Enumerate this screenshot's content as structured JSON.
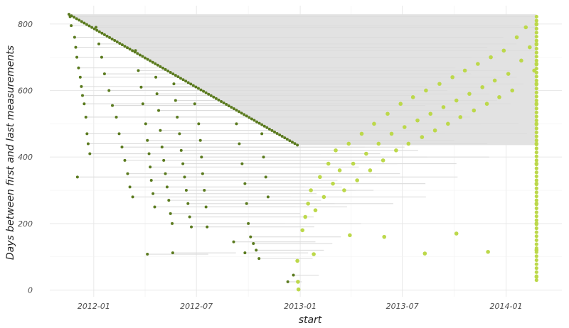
{
  "chart_data": {
    "type": "scatter",
    "title": "",
    "xlabel": "start",
    "ylabel": "Days between first and last measurements",
    "x_ticks": [
      {
        "label": "2012-01",
        "value": "2012-01-01"
      },
      {
        "label": "2012-07",
        "value": "2012-07-01"
      },
      {
        "label": "2013-01",
        "value": "2013-01-01"
      },
      {
        "label": "2013-07",
        "value": "2013-07-01"
      },
      {
        "label": "2014-01",
        "value": "2014-01-01"
      }
    ],
    "y_ticks": [
      0,
      200,
      400,
      600,
      800
    ],
    "xlim": [
      "2011-10-15",
      "2014-04-10"
    ],
    "ylim": [
      -20,
      855
    ],
    "grid": true,
    "legend": "none",
    "boundary": {
      "first_date": "2011-11-18",
      "last_date": "2014-02-24",
      "max_days": 829,
      "date_at_max_days_line_break": "2012-12-27",
      "min_band_days": 436
    },
    "colors": {
      "start_points": "#5a7a1e",
      "end_points": "#bcd84a",
      "segments": "#dcdcdc",
      "band": "#e2e2e2"
    },
    "series": [
      {
        "role": "start",
        "points": [
          {
            "x": "2011-11-20",
            "y": 822
          },
          {
            "x": "2011-11-22",
            "y": 795
          },
          {
            "x": "2011-11-28",
            "y": 760
          },
          {
            "x": "2011-11-30",
            "y": 730
          },
          {
            "x": "2011-12-02",
            "y": 700
          },
          {
            "x": "2011-12-05",
            "y": 668
          },
          {
            "x": "2011-12-08",
            "y": 640
          },
          {
            "x": "2011-12-10",
            "y": 612
          },
          {
            "x": "2011-12-12",
            "y": 585
          },
          {
            "x": "2011-12-15",
            "y": 560
          },
          {
            "x": "2011-12-18",
            "y": 520
          },
          {
            "x": "2011-12-20",
            "y": 470
          },
          {
            "x": "2011-12-22",
            "y": 440
          },
          {
            "x": "2011-12-25",
            "y": 410
          },
          {
            "x": "2011-12-03",
            "y": 340
          },
          {
            "x": "2012-01-05",
            "y": 790
          },
          {
            "x": "2012-01-10",
            "y": 740
          },
          {
            "x": "2012-01-15",
            "y": 700
          },
          {
            "x": "2012-01-20",
            "y": 650
          },
          {
            "x": "2012-01-28",
            "y": 600
          },
          {
            "x": "2012-02-03",
            "y": 555
          },
          {
            "x": "2012-02-10",
            "y": 520
          },
          {
            "x": "2012-02-15",
            "y": 470
          },
          {
            "x": "2012-02-20",
            "y": 430
          },
          {
            "x": "2012-02-25",
            "y": 390
          },
          {
            "x": "2012-03-01",
            "y": 350
          },
          {
            "x": "2012-03-05",
            "y": 310
          },
          {
            "x": "2012-03-10",
            "y": 280
          },
          {
            "x": "2012-03-15",
            "y": 720
          },
          {
            "x": "2012-03-20",
            "y": 660
          },
          {
            "x": "2012-03-25",
            "y": 610
          },
          {
            "x": "2012-03-28",
            "y": 560
          },
          {
            "x": "2012-04-02",
            "y": 500
          },
          {
            "x": "2012-04-05",
            "y": 450
          },
          {
            "x": "2012-04-08",
            "y": 410
          },
          {
            "x": "2012-04-10",
            "y": 370
          },
          {
            "x": "2012-04-12",
            "y": 330
          },
          {
            "x": "2012-04-15",
            "y": 290
          },
          {
            "x": "2012-04-18",
            "y": 250
          },
          {
            "x": "2012-04-20",
            "y": 640
          },
          {
            "x": "2012-04-22",
            "y": 590
          },
          {
            "x": "2012-04-25",
            "y": 540
          },
          {
            "x": "2012-04-28",
            "y": 480
          },
          {
            "x": "2012-05-01",
            "y": 430
          },
          {
            "x": "2012-05-04",
            "y": 390
          },
          {
            "x": "2012-05-07",
            "y": 350
          },
          {
            "x": "2012-05-10",
            "y": 310
          },
          {
            "x": "2012-05-13",
            "y": 270
          },
          {
            "x": "2012-05-16",
            "y": 230
          },
          {
            "x": "2012-05-19",
            "y": 200
          },
          {
            "x": "2012-05-22",
            "y": 620
          },
          {
            "x": "2012-05-25",
            "y": 570
          },
          {
            "x": "2012-05-28",
            "y": 520
          },
          {
            "x": "2012-06-01",
            "y": 470
          },
          {
            "x": "2012-06-04",
            "y": 420
          },
          {
            "x": "2012-06-07",
            "y": 380
          },
          {
            "x": "2012-06-10",
            "y": 340
          },
          {
            "x": "2012-06-13",
            "y": 300
          },
          {
            "x": "2012-06-16",
            "y": 260
          },
          {
            "x": "2012-06-19",
            "y": 220
          },
          {
            "x": "2012-06-22",
            "y": 190
          },
          {
            "x": "2012-06-28",
            "y": 560
          },
          {
            "x": "2012-07-05",
            "y": 500
          },
          {
            "x": "2012-07-08",
            "y": 450
          },
          {
            "x": "2012-07-10",
            "y": 400
          },
          {
            "x": "2012-07-12",
            "y": 350
          },
          {
            "x": "2012-07-15",
            "y": 300
          },
          {
            "x": "2012-07-18",
            "y": 250
          },
          {
            "x": "2012-07-20",
            "y": 190
          },
          {
            "x": "2012-04-05",
            "y": 108
          },
          {
            "x": "2012-05-20",
            "y": 112
          },
          {
            "x": "2012-09-10",
            "y": 500
          },
          {
            "x": "2012-09-15",
            "y": 440
          },
          {
            "x": "2012-09-20",
            "y": 380
          },
          {
            "x": "2012-09-25",
            "y": 320
          },
          {
            "x": "2012-09-28",
            "y": 260
          },
          {
            "x": "2012-10-01",
            "y": 200
          },
          {
            "x": "2012-10-05",
            "y": 160
          },
          {
            "x": "2012-10-10",
            "y": 140
          },
          {
            "x": "2012-10-15",
            "y": 120
          },
          {
            "x": "2012-10-20",
            "y": 95
          },
          {
            "x": "2012-10-25",
            "y": 470
          },
          {
            "x": "2012-10-28",
            "y": 400
          },
          {
            "x": "2012-11-01",
            "y": 340
          },
          {
            "x": "2012-11-05",
            "y": 280
          },
          {
            "x": "2012-12-10",
            "y": 25
          },
          {
            "x": "2012-12-20",
            "y": 45
          },
          {
            "x": "2012-09-05",
            "y": 145
          },
          {
            "x": "2012-09-25",
            "y": 112
          }
        ]
      },
      {
        "role": "end",
        "points": [
          {
            "x": "2013-01-05",
            "y": 180
          },
          {
            "x": "2013-01-10",
            "y": 220
          },
          {
            "x": "2013-01-15",
            "y": 260
          },
          {
            "x": "2013-01-20",
            "y": 300
          },
          {
            "x": "2013-01-28",
            "y": 240
          },
          {
            "x": "2013-02-05",
            "y": 340
          },
          {
            "x": "2013-02-12",
            "y": 280
          },
          {
            "x": "2013-02-20",
            "y": 380
          },
          {
            "x": "2013-02-28",
            "y": 320
          },
          {
            "x": "2013-03-05",
            "y": 420
          },
          {
            "x": "2013-03-12",
            "y": 360
          },
          {
            "x": "2013-03-20",
            "y": 300
          },
          {
            "x": "2013-03-28",
            "y": 440
          },
          {
            "x": "2013-04-05",
            "y": 380
          },
          {
            "x": "2013-04-12",
            "y": 330
          },
          {
            "x": "2013-04-20",
            "y": 470
          },
          {
            "x": "2013-04-28",
            "y": 410
          },
          {
            "x": "2013-05-05",
            "y": 360
          },
          {
            "x": "2013-05-12",
            "y": 500
          },
          {
            "x": "2013-05-20",
            "y": 440
          },
          {
            "x": "2013-05-28",
            "y": 390
          },
          {
            "x": "2013-06-05",
            "y": 530
          },
          {
            "x": "2013-06-12",
            "y": 470
          },
          {
            "x": "2013-06-20",
            "y": 420
          },
          {
            "x": "2013-06-28",
            "y": 560
          },
          {
            "x": "2013-07-05",
            "y": 490
          },
          {
            "x": "2013-07-12",
            "y": 440
          },
          {
            "x": "2013-07-20",
            "y": 580
          },
          {
            "x": "2013-07-28",
            "y": 510
          },
          {
            "x": "2013-08-05",
            "y": 460
          },
          {
            "x": "2013-08-12",
            "y": 600
          },
          {
            "x": "2013-08-20",
            "y": 530
          },
          {
            "x": "2013-08-28",
            "y": 480
          },
          {
            "x": "2013-09-05",
            "y": 620
          },
          {
            "x": "2013-09-12",
            "y": 550
          },
          {
            "x": "2013-09-20",
            "y": 500
          },
          {
            "x": "2013-09-28",
            "y": 640
          },
          {
            "x": "2013-10-05",
            "y": 570
          },
          {
            "x": "2013-10-12",
            "y": 520
          },
          {
            "x": "2013-10-20",
            "y": 660
          },
          {
            "x": "2013-10-28",
            "y": 590
          },
          {
            "x": "2013-11-05",
            "y": 540
          },
          {
            "x": "2013-11-12",
            "y": 680
          },
          {
            "x": "2013-11-20",
            "y": 610
          },
          {
            "x": "2013-11-28",
            "y": 560
          },
          {
            "x": "2013-12-05",
            "y": 700
          },
          {
            "x": "2013-12-12",
            "y": 630
          },
          {
            "x": "2013-12-20",
            "y": 580
          },
          {
            "x": "2013-12-28",
            "y": 720
          },
          {
            "x": "2014-01-05",
            "y": 650
          },
          {
            "x": "2014-01-12",
            "y": 600
          },
          {
            "x": "2014-01-20",
            "y": 760
          },
          {
            "x": "2014-01-28",
            "y": 690
          },
          {
            "x": "2014-02-05",
            "y": 790
          },
          {
            "x": "2014-02-12",
            "y": 730
          },
          {
            "x": "2014-02-20",
            "y": 660
          },
          {
            "x": "2013-03-30",
            "y": 165
          },
          {
            "x": "2013-01-25",
            "y": 108
          },
          {
            "x": "2012-12-27",
            "y": 88
          },
          {
            "x": "2012-12-28",
            "y": 25
          },
          {
            "x": "2012-12-29",
            "y": 2
          },
          {
            "x": "2013-05-30",
            "y": 160
          },
          {
            "x": "2013-08-10",
            "y": 110
          },
          {
            "x": "2013-10-05",
            "y": 170
          },
          {
            "x": "2013-11-30",
            "y": 115
          },
          {
            "x": "2014-02-24",
            "y": 40
          },
          {
            "x": "2014-02-24",
            "y": 120
          },
          {
            "x": "2014-02-24",
            "y": 200
          },
          {
            "x": "2014-02-24",
            "y": 260
          },
          {
            "x": "2014-02-24",
            "y": 320
          },
          {
            "x": "2014-02-24",
            "y": 380
          },
          {
            "x": "2014-02-24",
            "y": 440
          },
          {
            "x": "2014-02-24",
            "y": 500
          },
          {
            "x": "2014-02-24",
            "y": 560
          },
          {
            "x": "2014-02-24",
            "y": 620
          },
          {
            "x": "2014-02-24",
            "y": 680
          },
          {
            "x": "2014-02-24",
            "y": 740
          },
          {
            "x": "2014-02-24",
            "y": 800
          }
        ]
      }
    ]
  }
}
